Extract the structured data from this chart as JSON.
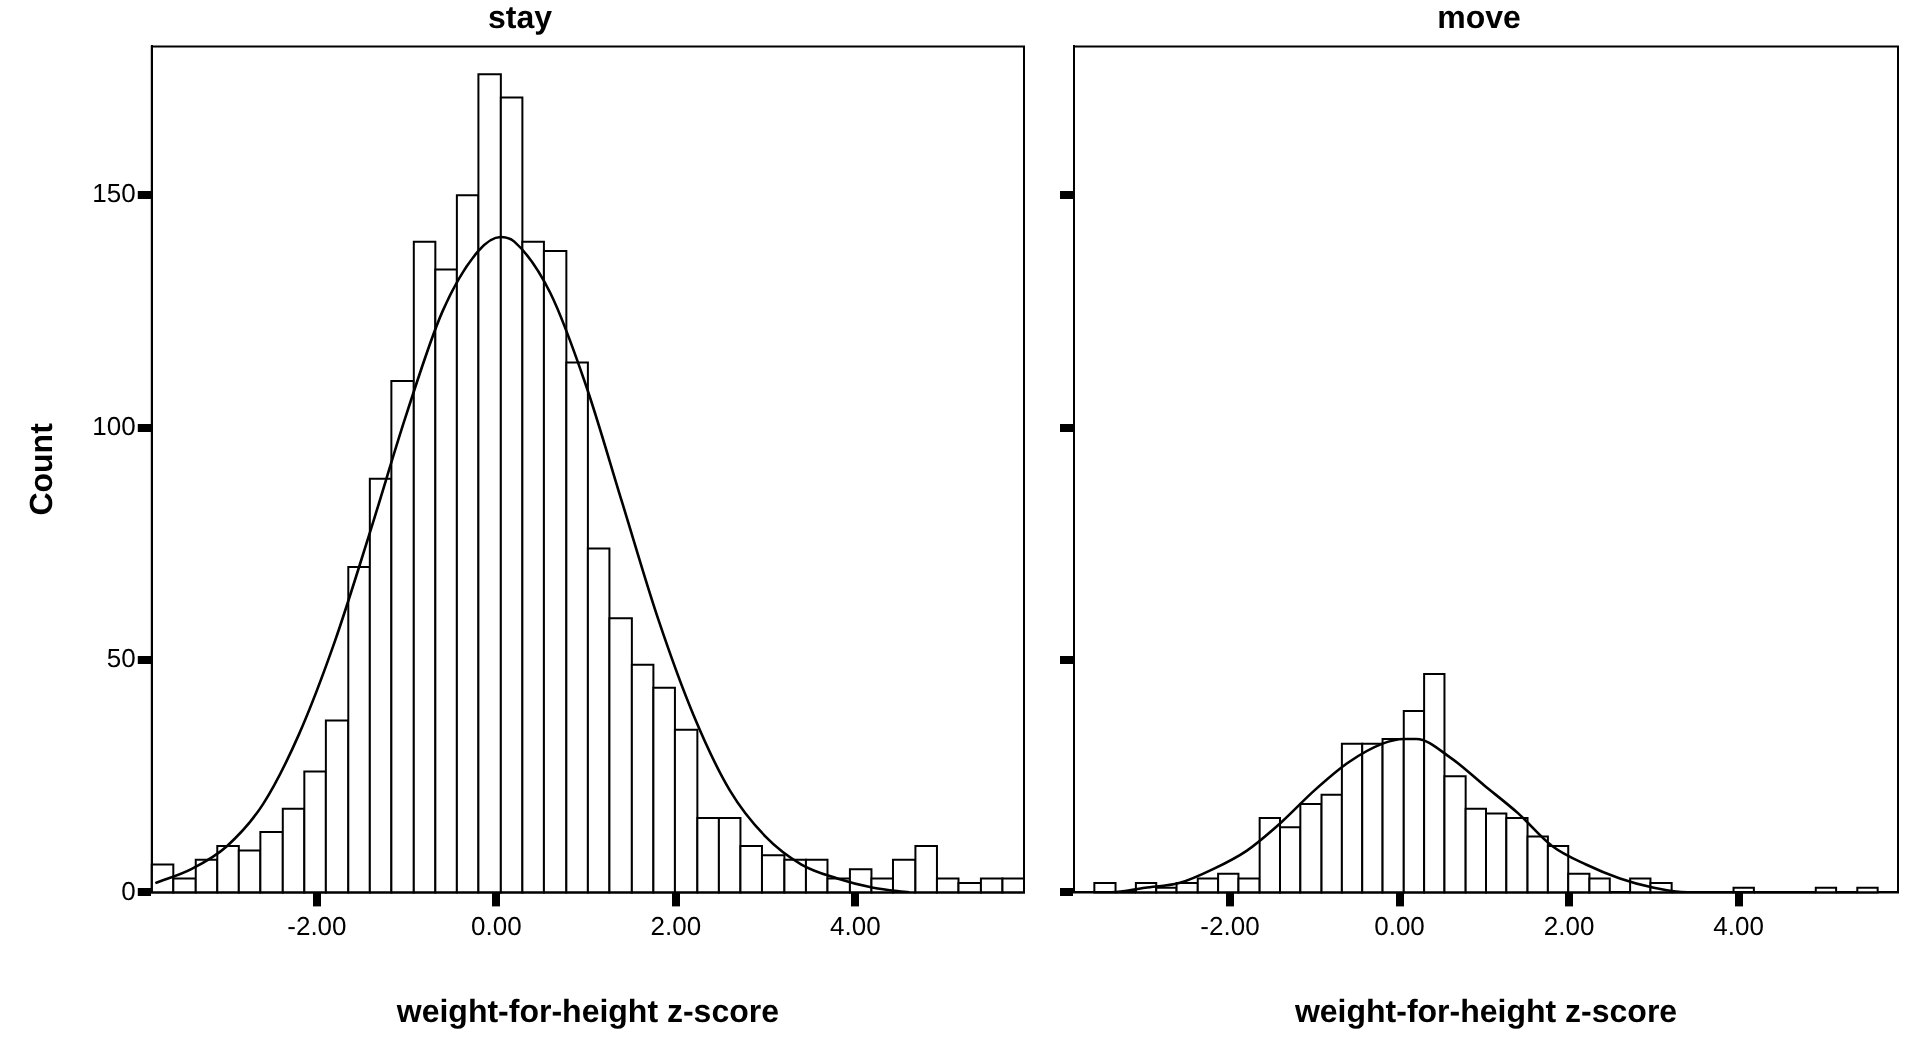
{
  "chart_data": [
    {
      "type": "histogram",
      "title": "stay",
      "xlabel": "weight-for-height z-score",
      "ylabel": "Count",
      "color": "#ffffff",
      "bins": [
        -3.84,
        -3.6,
        -3.35,
        -3.11,
        -2.87,
        -2.63,
        -2.38,
        -2.14,
        -1.9,
        -1.65,
        -1.41,
        -1.17,
        -0.92,
        -0.68,
        -0.44,
        -0.2,
        0.05,
        0.29,
        0.53,
        0.78,
        1.02,
        1.26,
        1.51,
        1.75,
        1.99,
        2.24,
        2.48,
        2.72,
        2.96,
        3.21,
        3.45,
        3.69,
        3.94,
        4.18,
        4.42,
        4.67,
        4.91,
        5.15,
        5.4,
        5.64,
        5.88
      ],
      "values": [
        6,
        3,
        7,
        10,
        9,
        13,
        18,
        26,
        37,
        70,
        89,
        110,
        140,
        134,
        150,
        176,
        171,
        140,
        138,
        114,
        74,
        59,
        49,
        44,
        35,
        16,
        16,
        10,
        8,
        7,
        7,
        3,
        5,
        3,
        7,
        10,
        3,
        2,
        3,
        3
      ],
      "series": [
        {
          "type": "line",
          "color": "#000000",
          "x": [
            -3.8,
            -3.4,
            -3.0,
            -2.6,
            -2.2,
            -1.8,
            -1.4,
            -1.0,
            -0.6,
            -0.2,
            0.05,
            0.2,
            0.6,
            1.0,
            1.4,
            1.8,
            2.2,
            2.6,
            3.0,
            3.4,
            3.8,
            4.2,
            4.6
          ],
          "values": [
            2,
            5,
            10,
            19,
            34,
            54,
            78,
            103,
            125,
            138,
            141,
            140,
            129,
            109,
            84,
            59,
            38,
            22,
            12,
            6,
            3,
            1,
            0
          ]
        }
      ],
      "xlim": [
        -3.84,
        5.88
      ],
      "xticks": [
        {
          "value": -2,
          "label": "-2.00"
        },
        {
          "value": 0,
          "label": "0.00"
        },
        {
          "value": 2,
          "label": "2.00"
        },
        {
          "value": 4,
          "label": "4.00"
        }
      ],
      "ylim": [
        0,
        182
      ],
      "yticks": [
        0,
        50,
        100,
        150
      ],
      "grid": false,
      "legend": false
    },
    {
      "type": "histogram",
      "title": "move",
      "xlabel": "weight-for-height z-score",
      "color": "#ffffff",
      "bins": [
        -3.6,
        -3.35,
        -3.11,
        -2.87,
        -2.63,
        -2.38,
        -2.14,
        -1.9,
        -1.65,
        -1.41,
        -1.17,
        -0.92,
        -0.68,
        -0.44,
        -0.2,
        0.05,
        0.29,
        0.53,
        0.78,
        1.02,
        1.26,
        1.51,
        1.75,
        1.99,
        2.24,
        2.48,
        2.72,
        2.96,
        3.21,
        3.94,
        4.18,
        4.91,
        5.15,
        5.4,
        5.64
      ],
      "values": [
        2,
        0,
        2,
        1,
        2,
        3,
        4,
        3,
        16,
        14,
        19,
        21,
        32,
        32,
        33,
        39,
        47,
        25,
        18,
        17,
        16,
        12,
        10,
        4,
        3,
        0,
        3,
        2,
        0,
        1,
        0,
        1,
        0,
        1
      ],
      "series": [
        {
          "type": "line",
          "color": "#000000",
          "x": [
            -3.8,
            -3.4,
            -3.0,
            -2.6,
            -2.2,
            -1.8,
            -1.4,
            -1.0,
            -0.6,
            -0.2,
            0.05,
            0.2,
            0.6,
            1.0,
            1.4,
            1.8,
            2.2,
            2.6,
            3.0,
            3.4,
            3.8,
            4.2
          ],
          "values": [
            0,
            0,
            1,
            2,
            5,
            9,
            15,
            22,
            28,
            32,
            33,
            33,
            29,
            23,
            17,
            10,
            6,
            3,
            1,
            0,
            0,
            0
          ]
        }
      ],
      "xlim": [
        -3.84,
        5.88
      ],
      "xticks": [
        {
          "value": -2,
          "label": "-2.00"
        },
        {
          "value": 0,
          "label": "0.00"
        },
        {
          "value": 2,
          "label": "2.00"
        },
        {
          "value": 4,
          "label": "4.00"
        }
      ],
      "ylim": [
        0,
        182
      ],
      "yticks": [
        0,
        50,
        100,
        150
      ],
      "tick_labels": "x",
      "grid": false,
      "legend": false
    }
  ]
}
